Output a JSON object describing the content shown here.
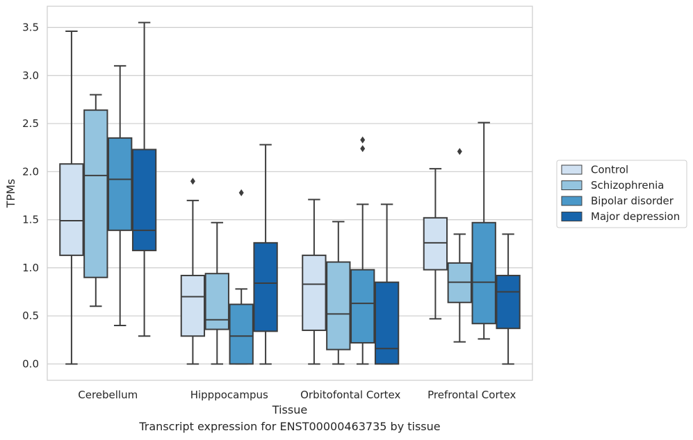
{
  "chart_data": {
    "type": "box",
    "xlabel": "Tissue",
    "ylabel": "TPMs",
    "ylim": [
      -0.17,
      3.72
    ],
    "yticks": [
      0.0,
      0.5,
      1.0,
      1.5,
      2.0,
      2.5,
      3.0,
      3.5
    ],
    "ytick_labels": [
      "0.0",
      "0.5",
      "1.0",
      "1.5",
      "2.0",
      "2.5",
      "3.0",
      "3.5"
    ],
    "grid": true,
    "legend_position": "right",
    "categories": [
      "Cerebellum",
      "Hipppocampus",
      "Orbitofontal Cortex",
      "Prefrontal Cortex"
    ],
    "series": [
      {
        "name": "Control",
        "color": "#d0e1f2",
        "boxes": [
          {
            "whislo": 0.0,
            "q1": 1.13,
            "med": 1.49,
            "q3": 2.08,
            "whishi": 3.46,
            "fliers": []
          },
          {
            "whislo": 0.0,
            "q1": 0.29,
            "med": 0.7,
            "q3": 0.92,
            "whishi": 1.7,
            "fliers": [
              1.9
            ]
          },
          {
            "whislo": 0.0,
            "q1": 0.35,
            "med": 0.83,
            "q3": 1.13,
            "whishi": 1.71,
            "fliers": []
          },
          {
            "whislo": 0.47,
            "q1": 0.98,
            "med": 1.26,
            "q3": 1.52,
            "whishi": 2.03,
            "fliers": []
          }
        ]
      },
      {
        "name": "Schizophrenia",
        "color": "#94c4df",
        "boxes": [
          {
            "whislo": 0.6,
            "q1": 0.9,
            "med": 1.96,
            "q3": 2.64,
            "whishi": 2.8,
            "fliers": []
          },
          {
            "whislo": 0.0,
            "q1": 0.36,
            "med": 0.46,
            "q3": 0.94,
            "whishi": 1.47,
            "fliers": []
          },
          {
            "whislo": 0.0,
            "q1": 0.15,
            "med": 0.52,
            "q3": 1.06,
            "whishi": 1.48,
            "fliers": []
          },
          {
            "whislo": 0.23,
            "q1": 0.64,
            "med": 0.85,
            "q3": 1.05,
            "whishi": 1.35,
            "fliers": [
              2.21
            ]
          }
        ]
      },
      {
        "name": "Bipolar disorder",
        "color": "#4a98c9",
        "boxes": [
          {
            "whislo": 0.4,
            "q1": 1.39,
            "med": 1.92,
            "q3": 2.35,
            "whishi": 3.1,
            "fliers": []
          },
          {
            "whislo": 0.0,
            "q1": 0.0,
            "med": 0.29,
            "q3": 0.62,
            "whishi": 0.78,
            "fliers": [
              1.78
            ]
          },
          {
            "whislo": 0.0,
            "q1": 0.22,
            "med": 0.63,
            "q3": 0.98,
            "whishi": 1.66,
            "fliers": [
              2.24,
              2.33
            ]
          },
          {
            "whislo": 0.26,
            "q1": 0.42,
            "med": 0.85,
            "q3": 1.47,
            "whishi": 2.51,
            "fliers": []
          }
        ]
      },
      {
        "name": "Major depression",
        "color": "#1764ab",
        "boxes": [
          {
            "whislo": 0.29,
            "q1": 1.18,
            "med": 1.39,
            "q3": 2.23,
            "whishi": 3.55,
            "fliers": []
          },
          {
            "whislo": 0.0,
            "q1": 0.34,
            "med": 0.84,
            "q3": 1.26,
            "whishi": 2.28,
            "fliers": []
          },
          {
            "whislo": 0.0,
            "q1": 0.0,
            "med": 0.16,
            "q3": 0.85,
            "whishi": 1.66,
            "fliers": []
          },
          {
            "whislo": 0.0,
            "q1": 0.37,
            "med": 0.75,
            "q3": 0.92,
            "whishi": 1.35,
            "fliers": []
          }
        ]
      }
    ],
    "caption": "Transcript expression for ENST00000463735 by tissue"
  }
}
